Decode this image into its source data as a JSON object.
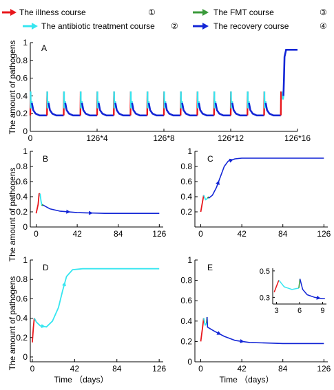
{
  "legend": {
    "entries": [
      {
        "label": "The illness course",
        "marker": "①",
        "color": "#e8161b"
      },
      {
        "label": "The antibiotic treatment course",
        "marker": "②",
        "color": "#36e6f0"
      },
      {
        "label": "The FMT course",
        "marker": "③",
        "color": "#3a9a3a"
      },
      {
        "label": "The recovery course",
        "marker": "④",
        "color": "#1326d6"
      }
    ]
  },
  "shared": {
    "ylabel": "The amount of pathogens",
    "xlabel": "Time （days）"
  },
  "chart_data": [
    {
      "panel": "A",
      "type": "line",
      "xlim": [
        0,
        2016
      ],
      "ylim": [
        0,
        1
      ],
      "xticks": [
        0,
        504,
        1008,
        1512,
        2016
      ],
      "xticklabels": [
        "0",
        "126*4",
        "126*8",
        "126*12",
        "126*16"
      ],
      "yticks": [
        0,
        0.2,
        0.4,
        0.6,
        0.8,
        1
      ],
      "yticklabels": [
        "0",
        "0.2",
        "0.4",
        "0.6",
        "0.8",
        "1"
      ],
      "cycles": 16,
      "cycle_length": 126,
      "episode_times": [
        0,
        126,
        252,
        378,
        504,
        630,
        756,
        882,
        1008,
        1134,
        1260,
        1386,
        1512,
        1638,
        1764,
        1890
      ],
      "baseline": 0.18,
      "peak": 0.45,
      "final_level": 0.92,
      "rise_time": 1900,
      "rise_end": 1930
    },
    {
      "panel": "B",
      "type": "line",
      "xlim": [
        -6,
        130
      ],
      "ylim": [
        0,
        1
      ],
      "xticks": [
        0,
        42,
        84,
        126
      ],
      "xticklabels": [
        "0",
        "42",
        "84",
        "126"
      ],
      "yticks": [
        0,
        0.2,
        0.4,
        0.6,
        0.8,
        1
      ],
      "yticklabels": [
        "0",
        "0.2",
        "0.4",
        "0.6",
        "0.8",
        "1"
      ],
      "series": [
        {
          "color": "#e8161b",
          "points": [
            [
              0,
              0.18
            ],
            [
              2,
              0.3
            ],
            [
              3,
              0.44
            ],
            [
              4,
              0.44
            ]
          ]
        },
        {
          "color": "#36e6f0",
          "points": [
            [
              4,
              0.44
            ],
            [
              5,
              0.34
            ],
            [
              6,
              0.28
            ]
          ]
        },
        {
          "color": "#3a9a3a",
          "points": [
            [
              6,
              0.28
            ],
            [
              7,
              0.3
            ]
          ]
        },
        {
          "color": "#1326d6",
          "points": [
            [
              7,
              0.29
            ],
            [
              14,
              0.24
            ],
            [
              24,
              0.21
            ],
            [
              42,
              0.19
            ],
            [
              70,
              0.18
            ],
            [
              126,
              0.18
            ]
          ]
        }
      ]
    },
    {
      "panel": "C",
      "type": "line",
      "xlim": [
        -6,
        130
      ],
      "ylim": [
        0,
        1
      ],
      "xticks": [
        0,
        42,
        84,
        126
      ],
      "xticklabels": [
        "0",
        "42",
        "84",
        "126"
      ],
      "yticks": [
        0.2,
        0.4,
        0.6,
        0.8,
        1
      ],
      "yticklabels": [
        "0.2",
        "0.4",
        "0.6",
        "0.8",
        "1"
      ],
      "series": [
        {
          "color": "#e8161b",
          "points": [
            [
              0,
              0.2
            ],
            [
              2,
              0.35
            ],
            [
              3,
              0.42
            ]
          ]
        },
        {
          "color": "#36e6f0",
          "points": [
            [
              3,
              0.42
            ],
            [
              5,
              0.36
            ],
            [
              7,
              0.38
            ]
          ]
        },
        {
          "color": "#3a9a3a",
          "points": [
            [
              7,
              0.38
            ],
            [
              8,
              0.4
            ]
          ]
        },
        {
          "color": "#1326d6",
          "points": [
            [
              8,
              0.38
            ],
            [
              12,
              0.42
            ],
            [
              16,
              0.52
            ],
            [
              20,
              0.66
            ],
            [
              24,
              0.8
            ],
            [
              28,
              0.87
            ],
            [
              35,
              0.9
            ],
            [
              42,
              0.91
            ],
            [
              60,
              0.91
            ],
            [
              126,
              0.91
            ]
          ]
        }
      ]
    },
    {
      "panel": "D",
      "type": "line",
      "xlim": [
        -2,
        130
      ],
      "ylim": [
        -0.05,
        1.0
      ],
      "xticks": [
        0,
        42,
        84,
        126
      ],
      "xticklabels": [
        "0",
        "42",
        "84",
        "126"
      ],
      "yticks": [
        0,
        0.2,
        0.4,
        0.6,
        0.8,
        1
      ],
      "yticklabels": [
        "0",
        "0.2",
        "0.4",
        "0.6",
        "0.8",
        "1"
      ],
      "series": [
        {
          "color": "#e8161b",
          "points": [
            [
              0,
              0.15
            ],
            [
              1,
              0.3
            ],
            [
              2,
              0.4
            ]
          ]
        },
        {
          "color": "#36e6f0",
          "points": [
            [
              2,
              0.4
            ],
            [
              4,
              0.36
            ],
            [
              8,
              0.32
            ],
            [
              14,
              0.31
            ],
            [
              20,
              0.37
            ],
            [
              26,
              0.51
            ],
            [
              30,
              0.68
            ],
            [
              34,
              0.83
            ],
            [
              40,
              0.9
            ],
            [
              50,
              0.91
            ],
            [
              126,
              0.91
            ]
          ]
        }
      ]
    },
    {
      "panel": "E",
      "type": "line",
      "xlim": [
        -6,
        130
      ],
      "ylim": [
        0,
        1
      ],
      "xticks": [
        0,
        42,
        84,
        126
      ],
      "xticklabels": [
        "0",
        "42",
        "84",
        "126"
      ],
      "yticks": [
        0,
        0.2,
        0.4,
        0.6,
        0.8,
        1
      ],
      "yticklabels": [
        "0",
        "0.2",
        "0.4",
        "0.6",
        "0.8",
        "1"
      ],
      "series": [
        {
          "color": "#e8161b",
          "points": [
            [
              0,
              0.2
            ],
            [
              2,
              0.35
            ],
            [
              3,
              0.43
            ]
          ]
        },
        {
          "color": "#36e6f0",
          "points": [
            [
              3,
              0.43
            ],
            [
              4.5,
              0.36
            ],
            [
              6,
              0.38
            ]
          ]
        },
        {
          "color": "#3a9a3a",
          "points": [
            [
              6,
              0.38
            ],
            [
              6.5,
              0.44
            ]
          ]
        },
        {
          "color": "#1326d6",
          "points": [
            [
              6.5,
              0.44
            ],
            [
              7,
              0.34
            ],
            [
              14,
              0.3
            ],
            [
              24,
              0.25
            ],
            [
              35,
              0.21
            ],
            [
              50,
              0.19
            ],
            [
              84,
              0.18
            ],
            [
              126,
              0.18
            ]
          ]
        }
      ],
      "inset": {
        "xlim": [
          2.5,
          9.5
        ],
        "ylim": [
          0.25,
          0.52
        ],
        "xticks": [
          3,
          6,
          9
        ],
        "xticklabels": [
          "3",
          "6",
          "9"
        ],
        "yticks": [
          0.3,
          0.5
        ],
        "yticklabels": [
          "0.3",
          "0.5"
        ],
        "series": [
          {
            "color": "#e8161b",
            "points": [
              [
                2.7,
                0.34
              ],
              [
                3.3,
                0.43
              ]
            ]
          },
          {
            "color": "#36e6f0",
            "points": [
              [
                3.3,
                0.43
              ],
              [
                4,
                0.38
              ],
              [
                5,
                0.36
              ],
              [
                5.9,
                0.37
              ]
            ]
          },
          {
            "color": "#3a9a3a",
            "points": [
              [
                5.9,
                0.37
              ],
              [
                6.05,
                0.44
              ]
            ]
          },
          {
            "color": "#1326d6",
            "points": [
              [
                6.05,
                0.44
              ],
              [
                6.4,
                0.36
              ],
              [
                7,
                0.32
              ],
              [
                8,
                0.3
              ],
              [
                9,
                0.29
              ],
              [
                9.3,
                0.29
              ]
            ]
          }
        ]
      }
    }
  ]
}
